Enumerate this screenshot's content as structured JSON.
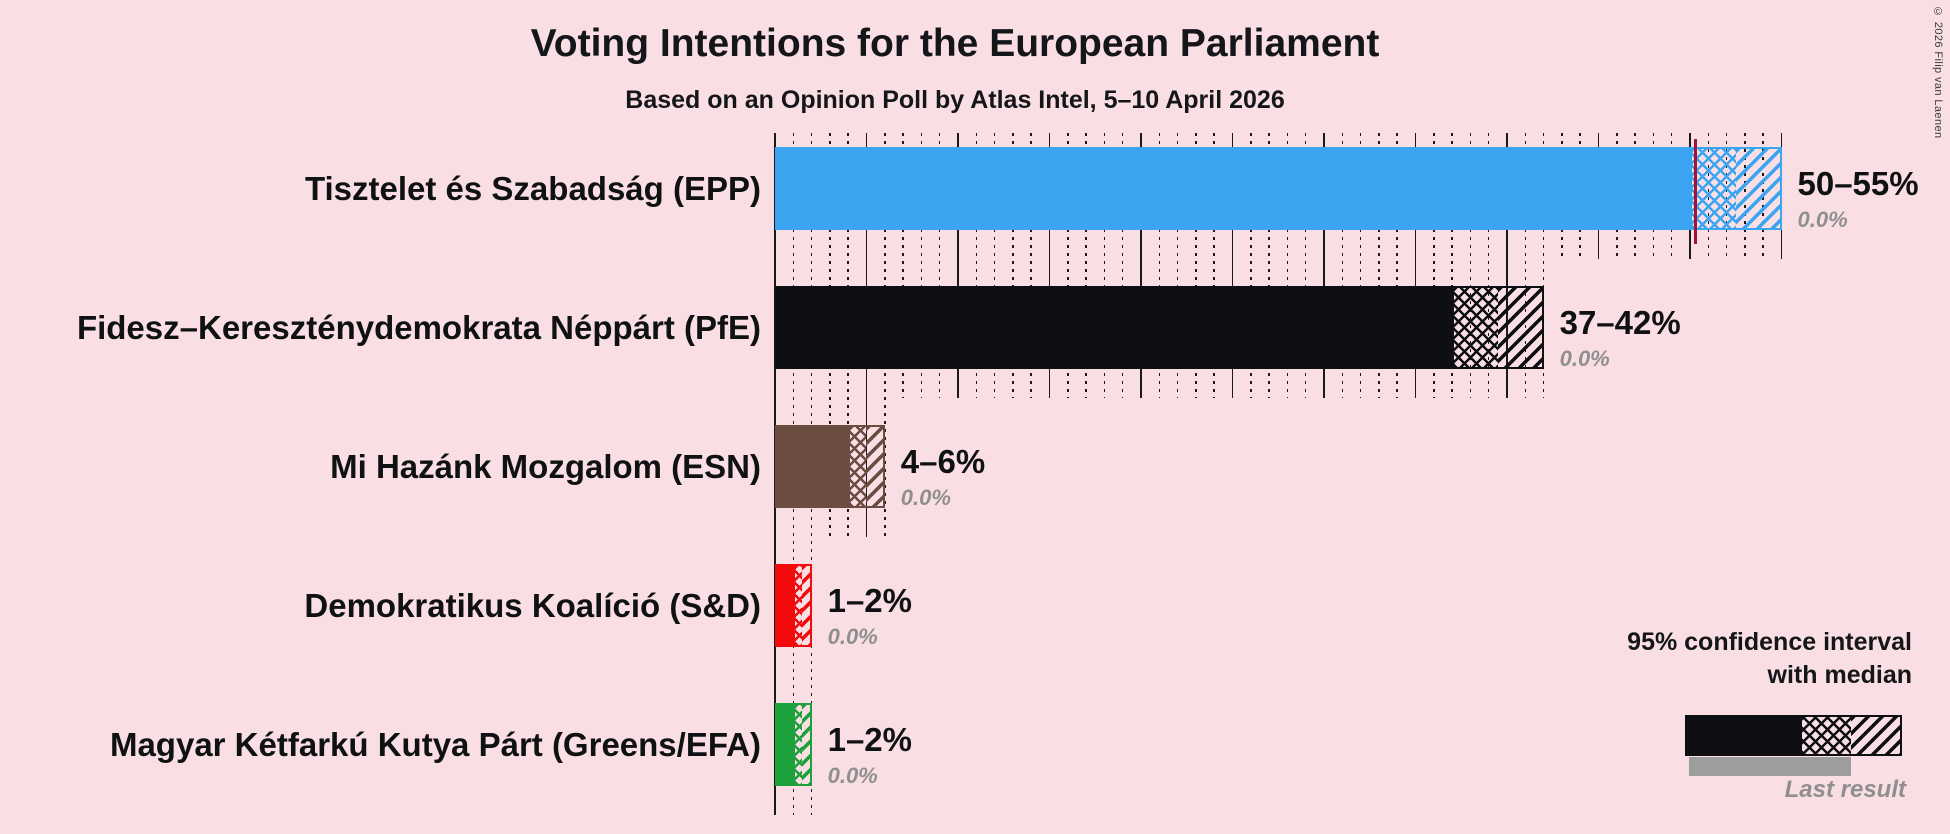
{
  "page": {
    "title": "Voting Intentions for the European Parliament",
    "subtitle": "Based on an Opinion Poll by Atlas Intel, 5–10 April 2026",
    "copyright": "© 2026 Filip van Laenen",
    "background_color": "#F9DFE4"
  },
  "legend": {
    "ci_line1": "95% confidence interval",
    "ci_line2": "with median",
    "last_result": "Last result",
    "sample_color": "#0D0F12",
    "last_result_bar_color": "#9D9D9D"
  },
  "chart_data": {
    "type": "bar",
    "orientation": "horizontal",
    "unit": "percent",
    "title": "Voting Intentions for the European Parliament",
    "subtitle": "Based on an Opinion Poll by Atlas Intel, 5–10 April 2026",
    "x_axis": {
      "min": 0,
      "max": 55,
      "minor_gridline_step": 1,
      "major_gridline_step": 5
    },
    "gridline_color": "#1A1A1A",
    "median_line_color": "#A01535",
    "parties": [
      {
        "label": "Tisztelet és Szabadság (EPP)",
        "color": "#3BA5F1",
        "ci_low": 50,
        "ci_high": 55,
        "median": 50.3,
        "ci_label": "50–55%",
        "last_result": 0,
        "last_result_label": "0.0%"
      },
      {
        "label": "Fidesz–Kereszténydemokrata Néppárt (PfE)",
        "color": "#0D0F12",
        "ci_low": 37,
        "ci_high": 42,
        "ci_label": "37–42%",
        "last_result": 0,
        "last_result_label": "0.0%"
      },
      {
        "label": "Mi Hazánk Mozgalom (ESN)",
        "color": "#6B4C41",
        "ci_low": 4,
        "ci_high": 6,
        "ci_label": "4–6%",
        "last_result": 0,
        "last_result_label": "0.0%"
      },
      {
        "label": "Demokratikus Koalíció (S&D)",
        "color": "#F30B0B",
        "ci_low": 1,
        "ci_high": 2,
        "ci_label": "1–2%",
        "last_result": 0,
        "last_result_label": "0.0%"
      },
      {
        "label": "Magyar Kétfarkú Kutya Párt (Greens/EFA)",
        "color": "#1DA13C",
        "ci_low": 1,
        "ci_high": 2,
        "ci_label": "1–2%",
        "last_result": 0,
        "last_result_label": "0.0%"
      }
    ]
  }
}
